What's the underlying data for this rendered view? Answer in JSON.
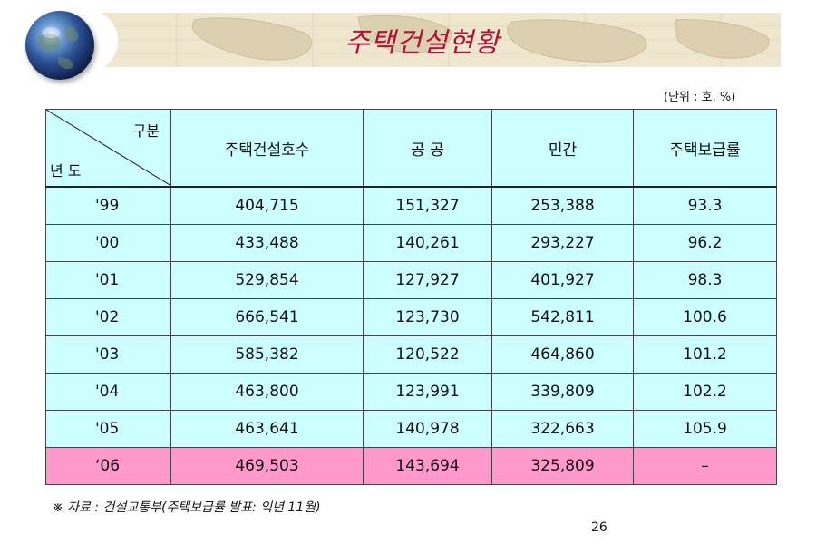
{
  "header": {
    "title": "주택건설현황"
  },
  "unit_note": "(단위 : 호, %)",
  "table": {
    "corner_top": "구분",
    "corner_bottom": "년 도",
    "columns": [
      "주택건설호수",
      "공 공",
      "민간",
      "주택보급률"
    ],
    "rows": [
      {
        "year": "'99",
        "total": "404,715",
        "public": "151,327",
        "private": "253,388",
        "rate": "93.3"
      },
      {
        "year": "'00",
        "total": "433,488",
        "public": "140,261",
        "private": "293,227",
        "rate": "96.2"
      },
      {
        "year": "'01",
        "total": "529,854",
        "public": "127,927",
        "private": "401,927",
        "rate": "98.3"
      },
      {
        "year": "'02",
        "total": "666,541",
        "public": "123,730",
        "private": "542,811",
        "rate": "100.6"
      },
      {
        "year": "'03",
        "total": "585,382",
        "public": "120,522",
        "private": "464,860",
        "rate": "101.2"
      },
      {
        "year": "'04",
        "total": "463,800",
        "public": "123,991",
        "private": "339,809",
        "rate": "102.2"
      },
      {
        "year": "'05",
        "total": "463,641",
        "public": "140,978",
        "private": "322,663",
        "rate": "105.9"
      },
      {
        "year": "‘06",
        "total": "469,503",
        "public": "143,694",
        "private": "325,809",
        "rate": "–"
      }
    ]
  },
  "source": "※ 자료 : 건설교통부(주택보급률 발표: 익년 11월)",
  "page_number": "26",
  "colors": {
    "title": "#b0103a",
    "table_bg": "#ccffff",
    "highlight_row": "#ff99cc",
    "header_band": "#efe6cf"
  }
}
